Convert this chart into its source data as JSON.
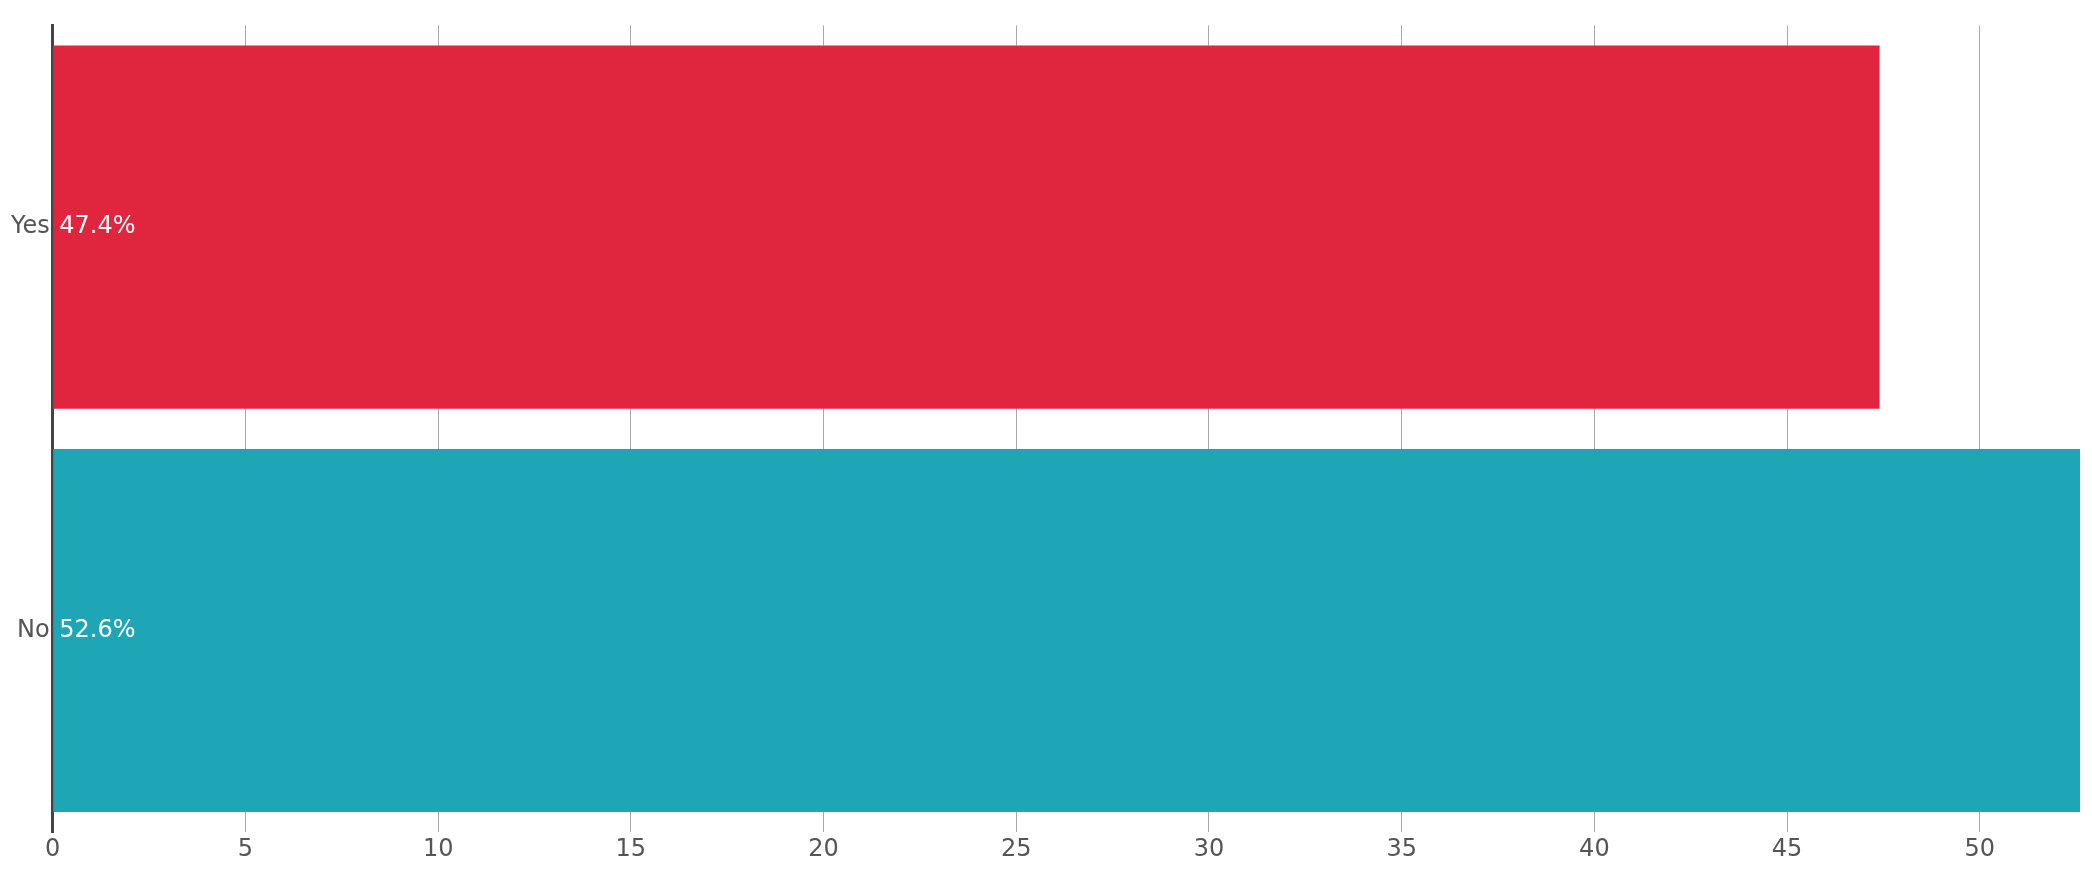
{
  "chart_data": {
    "type": "bar",
    "orientation": "horizontal",
    "categories": [
      "Yes",
      "No"
    ],
    "values": [
      47.4,
      52.6
    ],
    "colors": [
      "#e0263e",
      "#1fa6b6"
    ],
    "value_labels": [
      "47.4%",
      "52.6%"
    ],
    "xlim": [
      0,
      52.6
    ],
    "xticks": [
      0,
      5,
      10,
      15,
      20,
      25,
      30,
      35,
      40,
      45,
      50
    ],
    "grid": "x",
    "legend": false
  }
}
